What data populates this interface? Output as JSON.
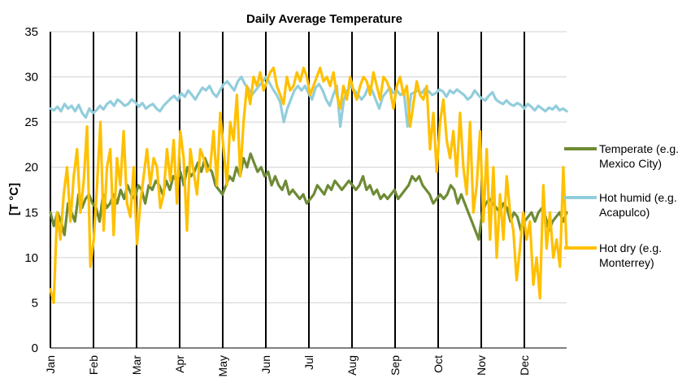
{
  "chart_data": {
    "type": "line",
    "title": "Daily Average Temperature",
    "xlabel": "",
    "ylabel": "[T °C]",
    "ylim": [
      0,
      35
    ],
    "yticks": [
      0,
      5,
      10,
      15,
      20,
      25,
      30,
      35
    ],
    "grid": "horizontal",
    "legend_position": "right",
    "months": [
      "Jan",
      "Feb",
      "Mar",
      "Apr",
      "May",
      "Jun",
      "Jul",
      "Aug",
      "Sep",
      "Oct",
      "Nov",
      "Dec"
    ],
    "series": [
      {
        "name": "Temperate (e.g. Mexico City)",
        "legend_lines": [
          "Temperate  (e.g.",
          "Mexico City)"
        ],
        "color": "#6e8b35",
        "values": [
          15,
          13.5,
          15,
          14,
          12.5,
          16,
          15,
          14,
          17,
          15.5,
          16.5,
          17,
          16,
          15.5,
          14,
          17,
          15.5,
          16,
          17,
          16,
          17.5,
          16.5,
          18,
          17,
          16.5,
          18,
          17.5,
          16,
          18,
          17.5,
          18.5,
          18,
          17,
          18.5,
          17.5,
          19,
          18.5,
          19.5,
          18,
          20,
          19,
          19.5,
          20.5,
          19.5,
          21,
          20,
          19.5,
          18,
          17.5,
          17,
          18,
          19,
          18.5,
          20,
          19,
          21,
          20,
          21.5,
          20.5,
          19.5,
          20,
          19,
          19.5,
          18,
          19,
          18,
          17.5,
          18.5,
          17,
          17.5,
          17,
          16.5,
          17,
          16,
          16.5,
          17,
          18,
          17.5,
          17,
          18,
          17.5,
          18.5,
          18,
          17.5,
          18,
          18.5,
          18,
          17.5,
          18,
          19,
          17.5,
          18,
          17,
          17.5,
          16.5,
          17,
          16.5,
          17,
          17.5,
          16.5,
          17,
          17.5,
          18,
          19,
          18.5,
          19,
          18,
          17.5,
          17,
          16,
          16.5,
          17,
          16.5,
          17,
          18,
          17.5,
          16,
          17,
          16,
          15,
          14,
          13,
          12,
          15,
          16,
          16.5,
          16,
          15.5,
          15,
          16,
          15.5,
          14,
          15,
          14.5,
          13,
          14,
          14.5,
          15,
          14,
          15,
          15.5,
          14.5,
          13,
          14,
          14.5,
          15,
          14,
          15
        ]
      },
      {
        "name": "Hot humid (e.g. Acapulco)",
        "legend_lines": [
          "Hot humid (e.g.",
          "Acapulco)"
        ],
        "color": "#92cddc",
        "values": [
          26.5,
          26.3,
          26.7,
          26.2,
          27,
          26.5,
          26.8,
          26.2,
          26.9,
          26,
          25.5,
          26.5,
          26,
          26.3,
          26.8,
          26.4,
          27,
          27.3,
          26.8,
          27.5,
          27.2,
          26.8,
          27,
          27.5,
          27.2,
          26.7,
          27.1,
          26.5,
          26.8,
          27,
          26.5,
          26.2,
          26.8,
          27.2,
          27.6,
          27.9,
          27.4,
          28.2,
          27.8,
          28.5,
          28,
          27.5,
          28.2,
          28.8,
          28.5,
          29,
          28.2,
          27.8,
          28.5,
          29.2,
          29.5,
          29,
          28.5,
          29.5,
          30,
          29.2,
          28.7,
          28,
          28.5,
          29,
          29.5,
          30,
          29.3,
          28.6,
          28,
          27.2,
          25,
          26.5,
          27.5,
          28.5,
          29,
          28.5,
          29,
          28.2,
          27.5,
          28.8,
          29.2,
          28.5,
          27.5,
          26.8,
          28,
          29,
          24.5,
          27.5,
          28.5,
          29,
          28.5,
          28,
          27.5,
          28,
          29,
          28.5,
          27.5,
          26.5,
          27.8,
          28.3,
          28.8,
          28.2,
          28.5,
          28,
          28.3,
          24.5,
          28.1,
          28.3,
          28.5,
          28.2,
          28.7,
          28.4,
          28,
          28.2,
          28.6,
          28.4,
          27.8,
          28.5,
          28.2,
          28.6,
          28.3,
          28,
          27.5,
          27.8,
          28.5,
          28,
          27.6,
          27.4,
          27.9,
          28.3,
          27.5,
          27.2,
          27,
          27.4,
          27,
          26.8,
          27.1,
          26.9,
          26.5,
          27,
          26.7,
          26.3,
          26.8,
          26.5,
          26.2,
          26.6,
          26.4,
          26.8,
          26.3,
          26.5,
          26.2
        ]
      },
      {
        "name": "Hot dry (e.g. Monterrey)",
        "legend_lines": [
          "Hot dry (e.g.",
          "Monterrey)"
        ],
        "color": "#ffc000",
        "values": [
          6.5,
          5,
          15,
          12,
          17,
          20,
          14,
          19,
          22,
          15,
          18.5,
          24.5,
          9,
          12,
          18,
          25,
          13,
          20,
          22,
          12.5,
          21,
          18,
          24,
          16,
          14.5,
          20,
          11.5,
          16,
          19,
          22,
          18,
          21,
          20,
          15.5,
          17,
          22,
          18.5,
          23,
          16,
          24,
          21,
          13,
          22,
          19.5,
          17,
          22,
          21,
          19.5,
          20,
          24,
          18,
          26,
          22,
          18,
          25,
          23,
          28,
          19,
          25,
          29,
          27,
          30,
          29,
          30.5,
          28.5,
          29.5,
          30.5,
          31,
          29,
          28,
          27,
          30,
          28.5,
          29,
          30.5,
          29.5,
          31,
          30,
          28,
          29,
          30,
          31,
          29.5,
          30,
          29,
          30.5,
          28,
          26.5,
          29,
          27.5,
          30,
          28.5,
          27.5,
          29,
          30,
          29.5,
          28,
          30.5,
          29,
          27.5,
          30,
          29.5,
          28.5,
          26.5,
          29,
          30,
          28,
          29,
          24.5,
          27,
          29.5,
          28,
          27.5,
          29,
          22,
          26,
          19.5,
          25,
          27.5,
          23,
          21,
          24,
          19,
          26,
          20,
          17,
          25,
          15,
          18,
          24,
          14,
          22,
          12,
          20,
          10,
          17,
          12,
          19,
          15,
          13,
          7.5,
          11,
          15,
          12,
          14,
          7,
          10,
          5.5,
          18,
          11,
          15,
          10,
          12,
          9,
          20,
          11
        ]
      }
    ]
  }
}
